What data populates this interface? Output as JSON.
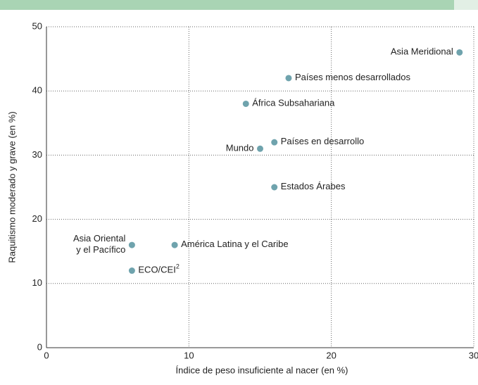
{
  "chart_data": {
    "type": "scatter",
    "x_label": "Índice de peso insuficiente al nacer (en %)",
    "y_label": "Raquitismo moderado y grave (en %)",
    "labels": [
      [
        "Asia Meridional"
      ],
      [
        "Países menos desarrollados"
      ],
      [
        "África Subsahariana"
      ],
      [
        "Países en desarrollo"
      ],
      [
        "Mundo"
      ],
      [
        "Estados Árabes"
      ],
      [
        "Asia Oriental",
        "y el Pacífico"
      ],
      [
        "América Latina y el Caribe"
      ],
      [
        "ECO/CEI"
      ]
    ],
    "label_superscripts": [
      null,
      null,
      null,
      null,
      null,
      null,
      null,
      null,
      "2"
    ],
    "x": [
      29,
      17,
      14,
      16,
      15,
      16,
      6,
      9,
      6
    ],
    "values": [
      46,
      42,
      38,
      32,
      31,
      25,
      16,
      16,
      12
    ],
    "color": "#6fa3ad",
    "xlim": [
      0,
      30
    ],
    "xticks": [
      0,
      10,
      20,
      30
    ],
    "ylim": [
      0,
      50
    ],
    "yticks": [
      0,
      10,
      20,
      30,
      40,
      50
    ],
    "grid": true
  }
}
